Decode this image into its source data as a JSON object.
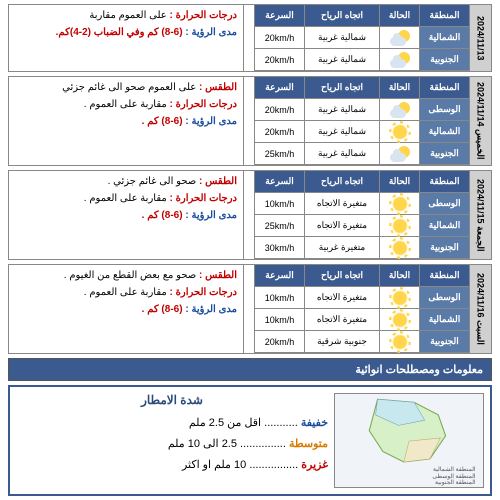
{
  "headers": {
    "region": "المنطقة",
    "state": "الحالة",
    "wind": "اتجاه الرياح",
    "speed": "السرعة"
  },
  "regions": {
    "center": "الوسطى",
    "north": "الشمالية",
    "south": "الجنوبية"
  },
  "days": [
    {
      "date": "2024/11/13",
      "rows": [
        {
          "region": "north",
          "icon": "partly",
          "wind": "شمالية غربية",
          "speed": "20km/h"
        },
        {
          "region": "south",
          "icon": "partly",
          "wind": "شمالية غربية",
          "speed": "20km/h"
        }
      ],
      "desc": {
        "temp": "على العموم مقاربة",
        "vis": "(6-8) كم وفي الضباب (2-4)كم."
      }
    },
    {
      "date": "الخميس 2024/11/14",
      "rows": [
        {
          "region": "center",
          "icon": "partly",
          "wind": "شمالية غربية",
          "speed": "20km/h"
        },
        {
          "region": "north",
          "icon": "sun",
          "wind": "شمالية غربية",
          "speed": "20km/h"
        },
        {
          "region": "south",
          "icon": "partly",
          "wind": "شمالية غربية",
          "speed": "25km/h"
        }
      ],
      "desc": {
        "weather": "على العموم صحو الى غائم جزئي",
        "temp": "مقاربة على العموم .",
        "vis": "(6-8) كم ."
      }
    },
    {
      "date": "الجمعة 2024/11/15",
      "rows": [
        {
          "region": "center",
          "icon": "sun",
          "wind": "متغيرة الاتجاه",
          "speed": "10km/h"
        },
        {
          "region": "north",
          "icon": "sun",
          "wind": "متغيرة الاتجاه",
          "speed": "25km/h"
        },
        {
          "region": "south",
          "icon": "sun",
          "wind": "متغيرة غربية",
          "speed": "30km/h"
        }
      ],
      "desc": {
        "weather": "صحو الى غائم جزئي .",
        "temp": "مقاربة على العموم .",
        "vis": "(6-8) كم ."
      }
    },
    {
      "date": "السبت 2024/11/16",
      "rows": [
        {
          "region": "center",
          "icon": "sun",
          "wind": "متغيرة الاتجاه",
          "speed": "10km/h"
        },
        {
          "region": "north",
          "icon": "sun",
          "wind": "متغيرة الاتجاه",
          "speed": "10km/h"
        },
        {
          "region": "south",
          "icon": "sun",
          "wind": "جنوبية شرقية",
          "speed": "20km/h"
        }
      ],
      "desc": {
        "weather": "صحو مع بعض القطع من الغيوم .",
        "temp": "مقاربة على العموم .",
        "vis": "(6-8) كم ."
      }
    }
  ],
  "labels": {
    "weather": "الطقس :",
    "temp": "درجات الحرارة :",
    "vis": "مدى الرؤية :"
  },
  "info_section": "معلومات ومصطلحات انوائية",
  "rain": {
    "title": "شدة الامطار",
    "rows": [
      {
        "k": "خفيفة",
        "cls": "c-blue",
        "v": "........... اقل من 2.5 ملم"
      },
      {
        "k": "متوسطة",
        "cls": "c-orange",
        "v": "............... 2.5 الى 10 ملم"
      },
      {
        "k": "غزيرة",
        "cls": "c-red",
        "v": "................ 10 ملم او اكثر"
      }
    ]
  },
  "map_legend": [
    "المنطقة الشمالية",
    "المنطقة الوسطى",
    "المنطقة الجنوبية"
  ]
}
